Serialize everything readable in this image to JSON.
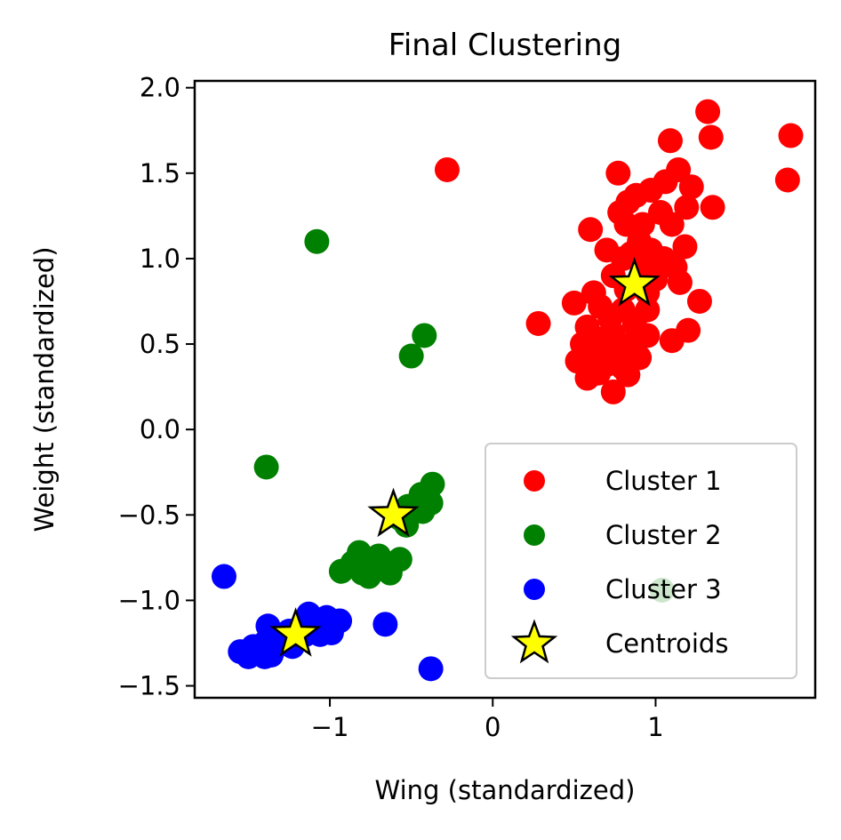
{
  "chart_data": {
    "type": "scatter",
    "title": "Final Clustering",
    "xlabel": "Wing (standardized)",
    "ylabel": "Weight (standardized)",
    "xlim": [
      -1.83,
      1.98
    ],
    "ylim": [
      -1.57,
      2.04
    ],
    "xticks": [
      -1,
      0,
      1
    ],
    "xtick_labels": [
      "−1",
      "0",
      "1"
    ],
    "yticks": [
      -1.5,
      -1.0,
      -0.5,
      0.0,
      0.5,
      1.0,
      1.5,
      2.0
    ],
    "ytick_labels": [
      "−1.5",
      "−1.0",
      "−0.5",
      "0.0",
      "0.5",
      "1.0",
      "1.5",
      "2.0"
    ],
    "grid": false,
    "legend_position": "lower right",
    "series": [
      {
        "name": "Cluster 1",
        "color": "#ff0000",
        "marker": "circle",
        "points": [
          [
            -0.28,
            1.52
          ],
          [
            1.32,
            1.86
          ],
          [
            1.34,
            1.71
          ],
          [
            1.83,
            1.72
          ],
          [
            1.81,
            1.46
          ],
          [
            1.09,
            1.69
          ],
          [
            1.14,
            1.52
          ],
          [
            0.77,
            1.5
          ],
          [
            1.22,
            1.42
          ],
          [
            0.97,
            1.4
          ],
          [
            1.06,
            1.45
          ],
          [
            0.88,
            1.37
          ],
          [
            0.83,
            1.33
          ],
          [
            0.78,
            1.27
          ],
          [
            1.35,
            1.3
          ],
          [
            1.19,
            1.3
          ],
          [
            1.03,
            1.27
          ],
          [
            0.82,
            1.2
          ],
          [
            0.92,
            1.2
          ],
          [
            1.1,
            1.2
          ],
          [
            0.6,
            1.17
          ],
          [
            0.9,
            1.1
          ],
          [
            0.7,
            1.05
          ],
          [
            1.18,
            1.07
          ],
          [
            0.97,
            1.05
          ],
          [
            0.85,
            1.03
          ],
          [
            0.8,
            1.0
          ],
          [
            1.05,
            1.0
          ],
          [
            1.12,
            0.95
          ],
          [
            0.95,
            0.95
          ],
          [
            0.74,
            0.9
          ],
          [
            1.0,
            0.88
          ],
          [
            1.15,
            0.86
          ],
          [
            0.62,
            0.8
          ],
          [
            0.82,
            0.82
          ],
          [
            1.27,
            0.75
          ],
          [
            0.95,
            0.8
          ],
          [
            0.5,
            0.74
          ],
          [
            0.66,
            0.72
          ],
          [
            0.8,
            0.7
          ],
          [
            0.95,
            0.7
          ],
          [
            0.72,
            0.65
          ],
          [
            0.87,
            0.62
          ],
          [
            0.28,
            0.62
          ],
          [
            0.58,
            0.6
          ],
          [
            1.2,
            0.58
          ],
          [
            0.74,
            0.56
          ],
          [
            0.95,
            0.55
          ],
          [
            0.65,
            0.53
          ],
          [
            0.85,
            0.5
          ],
          [
            0.55,
            0.5
          ],
          [
            1.1,
            0.52
          ],
          [
            0.7,
            0.48
          ],
          [
            0.78,
            0.45
          ],
          [
            0.9,
            0.42
          ],
          [
            0.62,
            0.42
          ],
          [
            0.52,
            0.4
          ],
          [
            0.7,
            0.38
          ],
          [
            0.8,
            0.36
          ],
          [
            0.65,
            0.33
          ],
          [
            0.58,
            0.3
          ],
          [
            0.83,
            0.32
          ],
          [
            0.74,
            0.22
          ]
        ]
      },
      {
        "name": "Cluster 2",
        "color": "#008000",
        "marker": "circle",
        "points": [
          [
            -1.08,
            1.1
          ],
          [
            -0.42,
            0.55
          ],
          [
            -0.5,
            0.43
          ],
          [
            -1.39,
            -0.22
          ],
          [
            -0.37,
            -0.32
          ],
          [
            -0.44,
            -0.38
          ],
          [
            -0.38,
            -0.43
          ],
          [
            -0.52,
            -0.45
          ],
          [
            -0.43,
            -0.48
          ],
          [
            -0.57,
            -0.52
          ],
          [
            -0.53,
            -0.56
          ],
          [
            -0.82,
            -0.72
          ],
          [
            -0.7,
            -0.74
          ],
          [
            -0.57,
            -0.76
          ],
          [
            -0.86,
            -0.78
          ],
          [
            -0.74,
            -0.8
          ],
          [
            -0.64,
            -0.8
          ],
          [
            -0.93,
            -0.83
          ],
          [
            -0.8,
            -0.84
          ],
          [
            -0.63,
            -0.84
          ],
          [
            -0.76,
            -0.86
          ],
          [
            1.04,
            -0.94
          ]
        ]
      },
      {
        "name": "Cluster 3",
        "color": "#0000ff",
        "marker": "circle",
        "points": [
          [
            -1.65,
            -0.86
          ],
          [
            -0.38,
            -1.4
          ],
          [
            -0.66,
            -1.14
          ],
          [
            -1.13,
            -1.08
          ],
          [
            -1.02,
            -1.1
          ],
          [
            -0.94,
            -1.12
          ],
          [
            -1.38,
            -1.15
          ],
          [
            -1.16,
            -1.15
          ],
          [
            -1.07,
            -1.17
          ],
          [
            -1.25,
            -1.18
          ],
          [
            -0.99,
            -1.19
          ],
          [
            -1.15,
            -1.2
          ],
          [
            -1.31,
            -1.22
          ],
          [
            -1.06,
            -1.2
          ],
          [
            -1.4,
            -1.25
          ],
          [
            -1.47,
            -1.27
          ],
          [
            -1.34,
            -1.28
          ],
          [
            -1.23,
            -1.27
          ],
          [
            -1.55,
            -1.3
          ],
          [
            -1.44,
            -1.3
          ],
          [
            -1.36,
            -1.32
          ],
          [
            -1.5,
            -1.33
          ],
          [
            -1.4,
            -1.33
          ]
        ]
      },
      {
        "name": "Centroids",
        "color": "#ffff00",
        "marker": "star",
        "points": [
          [
            0.87,
            0.85
          ],
          [
            -0.61,
            -0.5
          ],
          [
            -1.21,
            -1.2
          ]
        ]
      }
    ]
  }
}
